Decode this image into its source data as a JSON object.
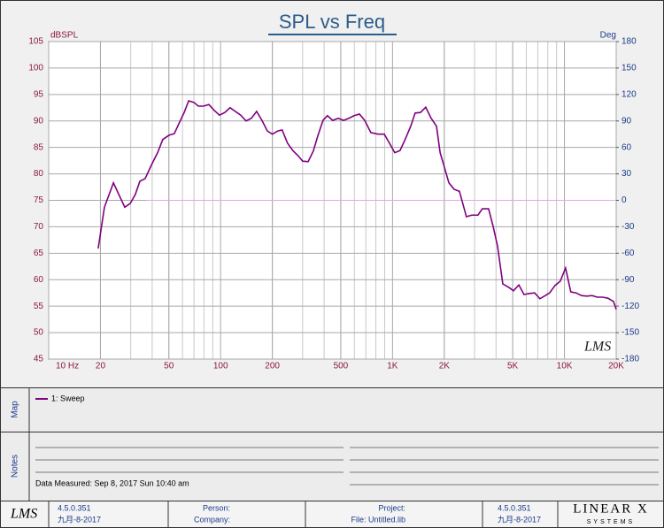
{
  "chart_data": {
    "type": "line",
    "title": "SPL vs Freq",
    "y_label": "dBSPL",
    "y2_label": "Deg",
    "watermark": "LMS",
    "xscale": "log",
    "grid": true,
    "xlim": [
      10,
      20000
    ],
    "xticks": [
      {
        "value": 10,
        "label": "10 Hz"
      },
      20,
      50,
      100,
      200,
      500,
      {
        "value": 1000,
        "label": "1K"
      },
      {
        "value": 2000,
        "label": "2K"
      },
      {
        "value": 5000,
        "label": "5K"
      },
      {
        "value": 10000,
        "label": "10K"
      },
      {
        "value": 20000,
        "label": "20K"
      }
    ],
    "ylim": [
      45,
      105
    ],
    "yticks": [
      45,
      50,
      55,
      60,
      65,
      70,
      75,
      80,
      85,
      90,
      95,
      100,
      105
    ],
    "y2lim": [
      -180,
      180
    ],
    "y2ticks": [
      -180,
      -150,
      -120,
      -90,
      -60,
      -30,
      0,
      30,
      60,
      90,
      120,
      150,
      180
    ],
    "series": [
      {
        "name": "1: Sweep",
        "color": "#800080",
        "x": [
          19.4,
          21.1,
          23.8,
          27.7,
          29.8,
          31.9,
          33.9,
          36.4,
          39.5,
          43,
          46.1,
          50.1,
          53.8,
          57.8,
          61.4,
          65.2,
          70,
          74.2,
          79.6,
          85.4,
          91.8,
          98.5,
          105.8,
          113.5,
          121.9,
          130.9,
          140.6,
          151,
          162,
          174,
          187,
          200,
          215,
          228,
          245,
          263,
          283,
          300,
          323,
          346,
          367,
          394,
          418,
          449,
          483,
          519,
          557,
          598,
          642,
          689,
          748,
          824,
          895,
          960,
          1030,
          1106,
          1188,
          1276,
          1354,
          1453,
          1560,
          1677,
          1802,
          1892,
          1981,
          2128,
          2280,
          2450,
          2690,
          2890,
          3140,
          3330,
          3620,
          3840,
          4080,
          4380,
          4770,
          5050,
          5430,
          5820,
          6250,
          6710,
          7200,
          7740,
          8200,
          8810,
          9450,
          10150,
          10890,
          11700,
          12560,
          13480,
          14470,
          15540,
          16680,
          17900,
          19270,
          20000
        ],
        "values": [
          65.9,
          73.7,
          78.3,
          73.7,
          74.4,
          76.1,
          78.6,
          79.1,
          81.6,
          84,
          86.5,
          87.3,
          87.6,
          89.8,
          91.6,
          93.8,
          93.5,
          92.8,
          92.8,
          93.1,
          92,
          91.1,
          91.6,
          92.5,
          91.8,
          91.1,
          90,
          90.5,
          91.8,
          90.1,
          88.1,
          87.5,
          88.1,
          88.3,
          85.8,
          84.4,
          83.4,
          82.4,
          82.3,
          84.3,
          87.1,
          90.1,
          91,
          90.1,
          90.5,
          90.1,
          90.5,
          91,
          91.3,
          90.1,
          87.8,
          87.5,
          87.5,
          85.8,
          84,
          84.4,
          86.6,
          89,
          91.5,
          91.6,
          92.6,
          90.5,
          89,
          84,
          81.8,
          78.3,
          77.1,
          76.7,
          71.9,
          72.2,
          72.2,
          73.4,
          73.4,
          70.2,
          66.4,
          59.2,
          58.5,
          57.9,
          59,
          57.2,
          57.4,
          57.5,
          56.4,
          57,
          57.5,
          58.9,
          59.7,
          62.2,
          57.7,
          57.5,
          57,
          56.9,
          57,
          56.7,
          56.7,
          56.5,
          55.9,
          54.4
        ]
      },
      {
        "color": "#e4a6e4",
        "axis": "y2",
        "x": [
          37,
          20000
        ],
        "values": [
          0,
          0
        ]
      }
    ]
  },
  "map": {
    "label": "Map"
  },
  "notes": {
    "label": "Notes",
    "text": "Data Measured: Sep 8, 2017 Sun 10:40 am"
  },
  "footer": {
    "logo": "LMS",
    "version": "4.5.0.351",
    "date": "九月-8-2017",
    "person": "Person:",
    "company": "Company:",
    "project": "Project:",
    "file": "File: Untitled.lib",
    "version_right": "4.5.0.351",
    "date_right": "九月-8-2017",
    "brand": "LINEAR X",
    "brand_sub": "SYSTEMS"
  }
}
